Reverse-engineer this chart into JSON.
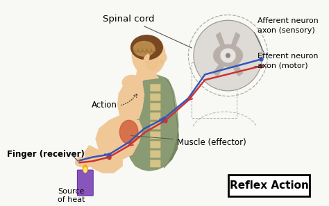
{
  "background_color": "#f8f8f5",
  "title": "Reflex Action",
  "labels": {
    "spinal_cord": "Spinal cord",
    "afferent": "Afferent neuron\naxon (sensory)",
    "efferent": "Efferent neuron\naxon (motor)",
    "action": "Action",
    "finger": "Finger (receiver)",
    "source_heat": "Source\nof heat",
    "muscle": "Muscle (effector)"
  },
  "afferent_color": "#3355bb",
  "efferent_color": "#cc3333",
  "candle_color": "#8855bb",
  "skin_color": "#f0c898",
  "skin_dark": "#e8b878",
  "body_color": "#8a9a72",
  "body_dark": "#6a7a52",
  "hair_color": "#7a4820",
  "brain_color": "#c09050",
  "muscle_color": "#cc5533",
  "spine_color": "#d4c488",
  "sc_bg": "#dedad5",
  "sc_inner": "#b8b0a8",
  "sc_white": "#e8e4e0"
}
